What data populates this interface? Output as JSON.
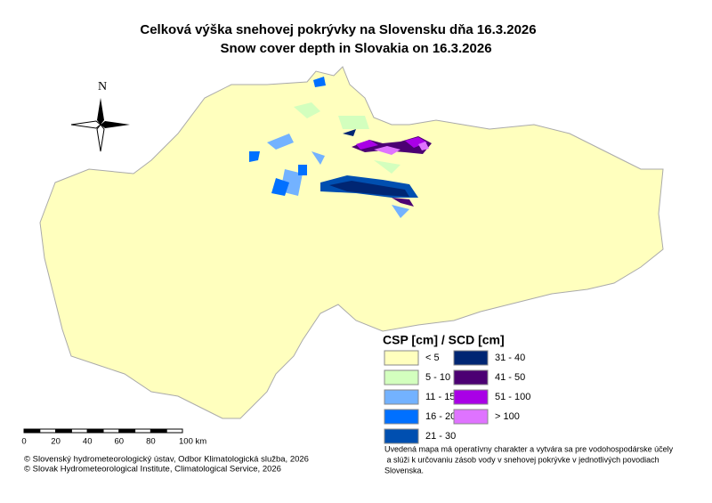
{
  "title": [
    "Celková výška snehovej pokrývky na Slovensku dňa 16.3.2026",
    "Snow cover depth in Slovakia on 16.3.2026"
  ],
  "north_arrow": "N",
  "legend": {
    "title": "CSP [cm] / SCD [cm]",
    "items": [
      {
        "label": "< 5",
        "color": "#ffffbe"
      },
      {
        "label": "5 - 10",
        "color": "#d3ffbe"
      },
      {
        "label": "11 - 15",
        "color": "#73b2ff"
      },
      {
        "label": "16 - 20",
        "color": "#0070ff"
      },
      {
        "label": "21 - 30",
        "color": "#004fb0"
      },
      {
        "label": "31 - 40",
        "color": "#002673"
      },
      {
        "label": "41 - 50",
        "color": "#4c0073"
      },
      {
        "label": "51 - 100",
        "color": "#a900e6"
      },
      {
        "label": "> 100",
        "color": "#df73ff"
      }
    ]
  },
  "scale_bar": [
    "0",
    "20",
    "40",
    "60",
    "80",
    "100 km"
  ],
  "copyright": [
    "© Slovenský hydrometeorologický ústav, Odbor Klimatologická služba, 2026",
    "© Slovak Hydrometeorological Institute, Climatological Service, 2026"
  ],
  "note": [
    "Uvedená mapa má operatívny charakter a vytvára sa pre vodohospodárske účely",
    " a slúži k určovaniu zásob vody v snehovej pokrývke v jednotlivých povodiach",
    "Slovenska."
  ]
}
